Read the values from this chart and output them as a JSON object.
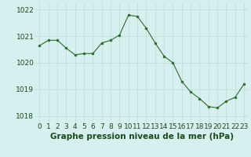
{
  "x": [
    0,
    1,
    2,
    3,
    4,
    5,
    6,
    7,
    8,
    9,
    10,
    11,
    12,
    13,
    14,
    15,
    16,
    17,
    18,
    19,
    20,
    21,
    22,
    23
  ],
  "y": [
    1020.65,
    1020.85,
    1020.85,
    1020.55,
    1020.3,
    1020.35,
    1020.35,
    1020.75,
    1020.85,
    1021.05,
    1021.8,
    1021.75,
    1021.3,
    1020.75,
    1020.25,
    1020.0,
    1019.3,
    1018.9,
    1018.65,
    1018.35,
    1018.3,
    1018.55,
    1018.7,
    1019.2
  ],
  "ylim": [
    1017.75,
    1022.25
  ],
  "yticks": [
    1018,
    1019,
    1020,
    1021,
    1022
  ],
  "xticks": [
    0,
    1,
    2,
    3,
    4,
    5,
    6,
    7,
    8,
    9,
    10,
    11,
    12,
    13,
    14,
    15,
    16,
    17,
    18,
    19,
    20,
    21,
    22,
    23
  ],
  "line_color": "#2d6b2d",
  "marker_color": "#2d6b2d",
  "bg_color": "#d6f0f0",
  "grid_color": "#c0dada",
  "xlabel": "Graphe pression niveau de la mer (hPa)",
  "xlabel_color": "#1a4a1a",
  "xlabel_fontsize": 7.5,
  "tick_fontsize": 6.5,
  "title": ""
}
